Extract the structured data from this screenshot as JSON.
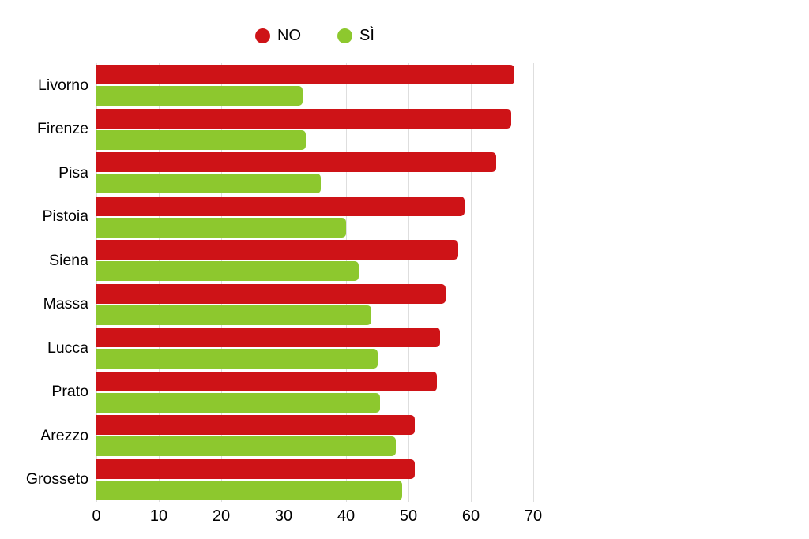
{
  "chart_data": {
    "type": "bar",
    "orientation": "horizontal",
    "title": "",
    "xlabel": "",
    "ylabel": "",
    "categories": [
      "Livorno",
      "Firenze",
      "Pisa",
      "Pistoia",
      "Siena",
      "Massa",
      "Lucca",
      "Prato",
      "Arezzo",
      "Grosseto"
    ],
    "series": [
      {
        "name": "NO",
        "color": "#ce1317",
        "values": [
          67,
          66.5,
          64,
          59,
          58,
          56,
          55,
          54.5,
          51,
          51
        ]
      },
      {
        "name": "SÌ",
        "color": "#8dc82e",
        "values": [
          33,
          33.5,
          36,
          40,
          42,
          44,
          45,
          45.5,
          48,
          49
        ]
      }
    ],
    "xlim": [
      0,
      70
    ],
    "xticks": [
      0,
      10,
      20,
      30,
      40,
      50,
      60,
      70
    ],
    "grid": true,
    "grid_color": "#dedede",
    "legend_position": "top",
    "background_color": "#ffffff",
    "text_color": "#000000"
  }
}
